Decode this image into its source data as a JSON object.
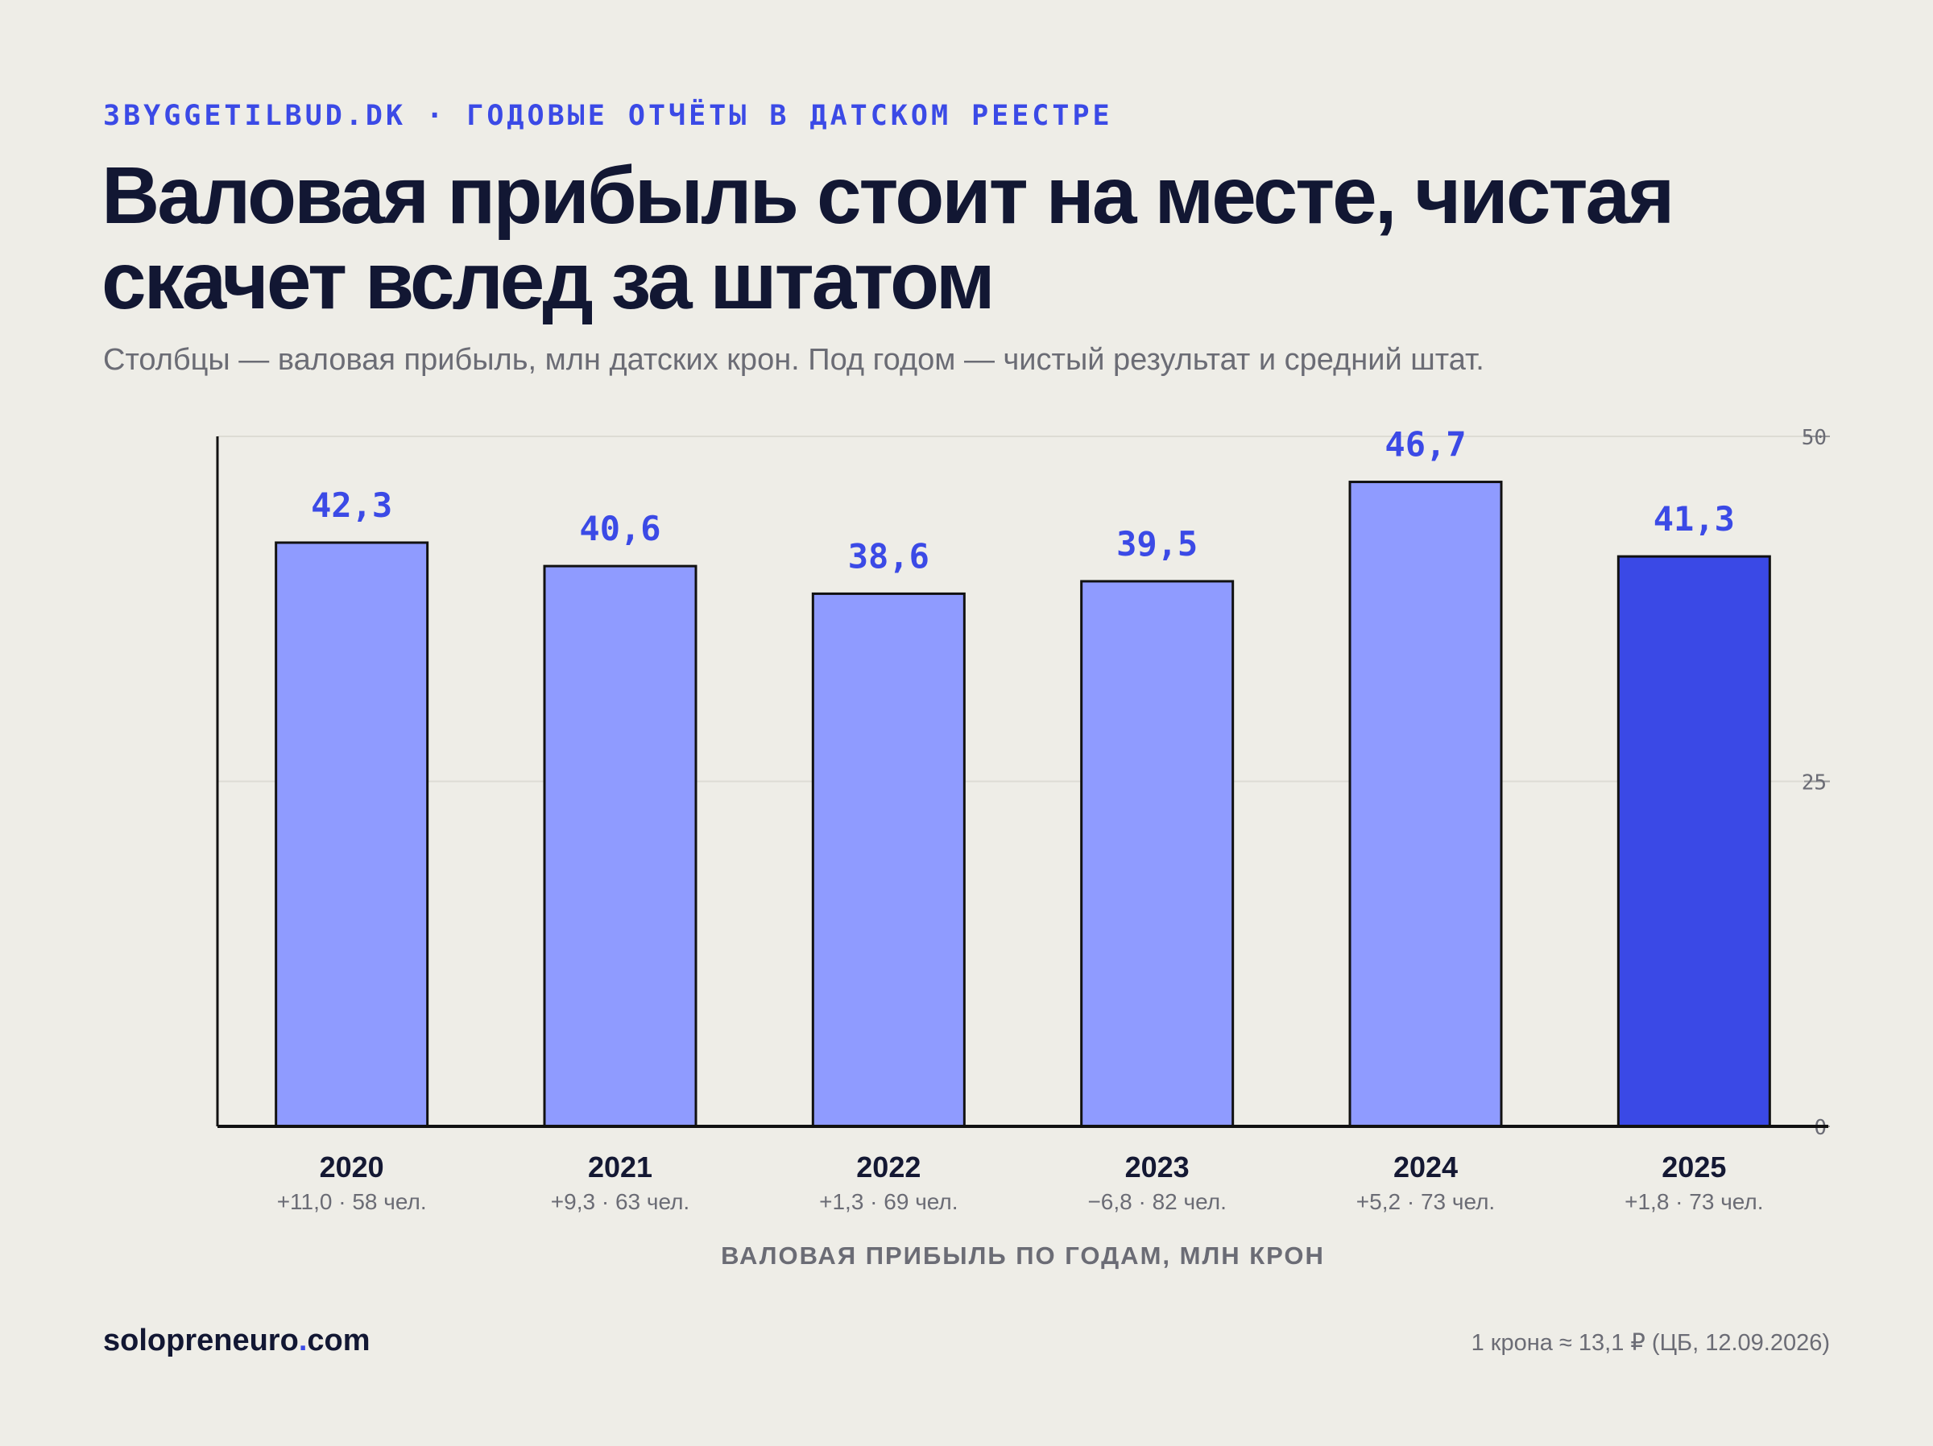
{
  "header": {
    "kicker": "3BYGGETILBUD.DK · ГОДОВЫЕ ОТЧЁТЫ В ДАТСКОМ РЕЕСТРЕ",
    "title": "Валовая прибыль стоит на месте, чистая скачет вслед за штатом",
    "subtitle": "Столбцы — валовая прибыль, млн датских крон. Под годом — чистый результат и средний штат."
  },
  "chart_data": {
    "type": "bar",
    "categories": [
      "2020",
      "2021",
      "2022",
      "2023",
      "2024",
      "2025"
    ],
    "values": [
      42.3,
      40.6,
      38.6,
      39.5,
      46.7,
      41.3
    ],
    "value_labels": [
      "42,3",
      "40,6",
      "38,6",
      "39,5",
      "46,7",
      "41,3"
    ],
    "sublabels": [
      "+11,0 · 58 чел.",
      "+9,3 · 63 чел.",
      "+1,3 · 69 чел.",
      "−6,8 · 82 чел.",
      "+5,2 · 73 чел.",
      "+1,8 · 73 чел."
    ],
    "xlabel": "ВАЛОВАЯ ПРИБЫЛЬ ПО ГОДАМ, МЛН КРОН",
    "ylabel": "",
    "ylim": [
      0,
      50
    ],
    "yticks": [
      0,
      25,
      50
    ],
    "ytick_side": "right",
    "grid": true,
    "highlight_index": 5,
    "colors": {
      "bar": "#8f9bff",
      "bar_highlight": "#3a49e6",
      "bar_outline": "#111111",
      "value_label": "#3b4ae6",
      "axis": "#111111",
      "grid": "#dddcd4"
    }
  },
  "footer": {
    "brand_main": "solopreneuro",
    "brand_dot": ".",
    "brand_tld": "com",
    "note": "1 крона ≈ 13,1 ₽ (ЦБ, 12.09.2026)"
  }
}
